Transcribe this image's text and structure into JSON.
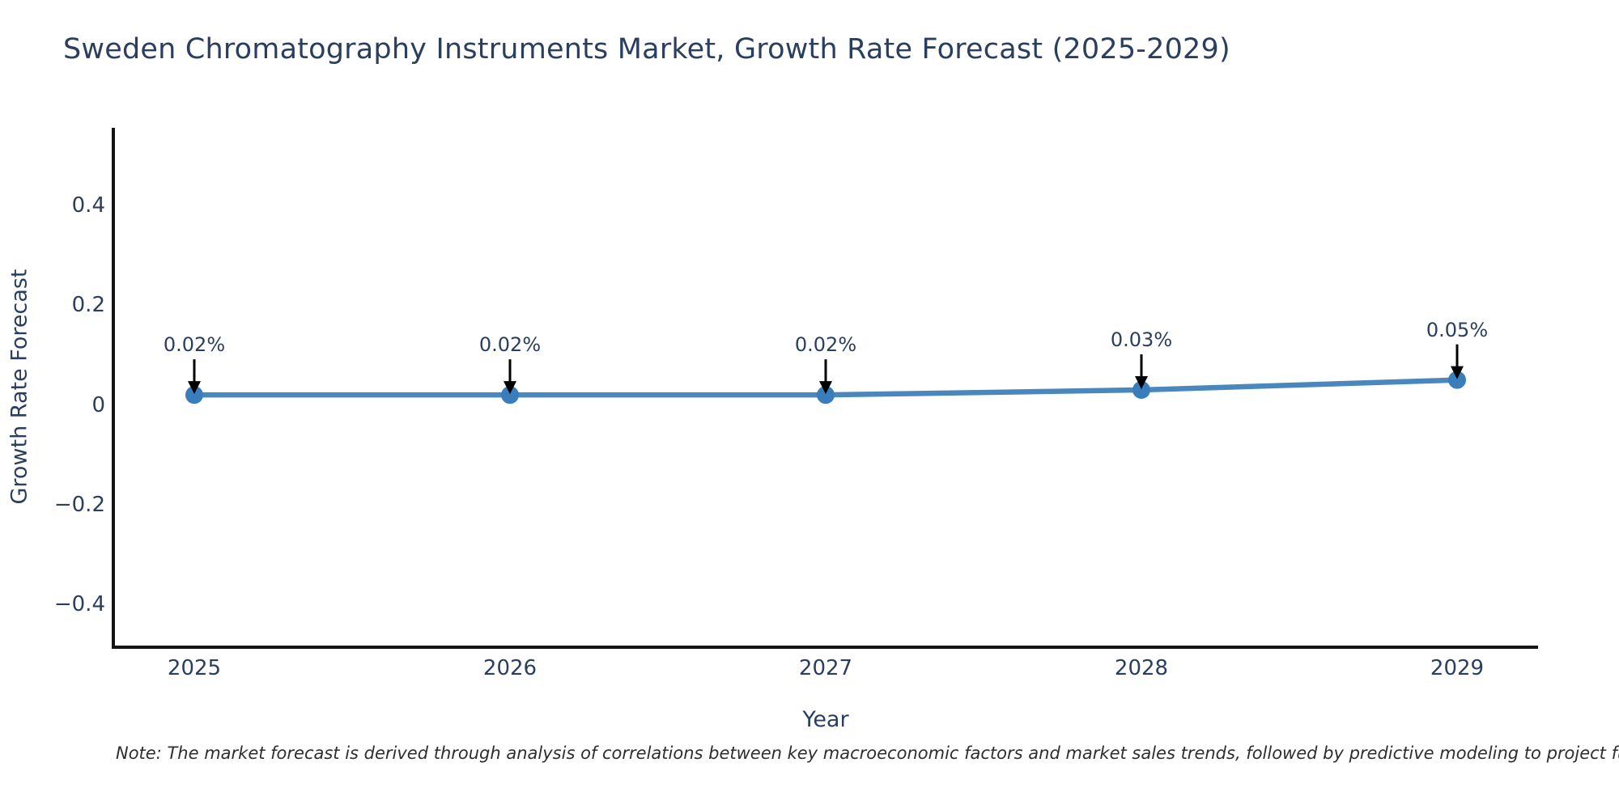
{
  "title": "Sweden Chromatography Instruments Market, Growth Rate Forecast (2025-2029)",
  "note": "Note: The market forecast is derived through analysis of correlations between key macroeconomic factors and market sales trends, followed by predictive modeling to project future sa",
  "chart_data": {
    "type": "line",
    "title": "Sweden Chromatography Instruments Market, Growth Rate Forecast (2025-2029)",
    "xlabel": "Year",
    "ylabel": "Growth Rate Forecast",
    "x": [
      2025,
      2026,
      2027,
      2028,
      2029
    ],
    "x_tick_labels": [
      "2025",
      "2026",
      "2027",
      "2028",
      "2029"
    ],
    "series": [
      {
        "name": "Growth Rate Forecast",
        "values": [
          0.02,
          0.02,
          0.02,
          0.03,
          0.05
        ],
        "unit": "%"
      }
    ],
    "point_labels": [
      "0.02%",
      "0.02%",
      "0.02%",
      "0.03%",
      "0.05%"
    ],
    "y_ticks": [
      -0.4,
      -0.2,
      0,
      0.2,
      0.4
    ],
    "y_tick_labels": [
      "−0.4",
      "−0.2",
      "0",
      "0.2",
      "0.4"
    ],
    "ylim": [
      -0.49,
      0.55
    ],
    "xlim": [
      2024.74,
      2029.26
    ],
    "grid": false,
    "legend": "none",
    "annotations": "arrow-down-to-each-point",
    "colors": {
      "line": "#4a87bd",
      "marker": "#3a7dbd",
      "axis": "#141414",
      "text": "#2a3f5f",
      "annotation_arrow": "#000000",
      "background": "#ffffff"
    }
  }
}
